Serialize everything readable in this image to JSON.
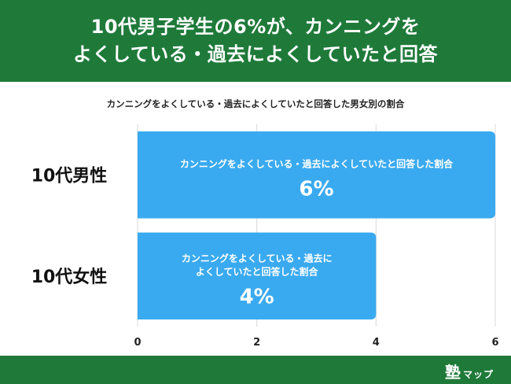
{
  "header": {
    "title_line1": "10代男子学生の6%が、カンニングを",
    "title_line2": "よくしている・過去によくしていたと回答"
  },
  "subtitle": "カンニングをよくしている・過去によくしていたと回答した男女別の割合",
  "chart_data": {
    "type": "bar",
    "orientation": "horizontal",
    "categories": [
      "10代男性",
      "10代女性"
    ],
    "values": [
      6,
      4
    ],
    "unit": "%",
    "bar_labels": [
      [
        "カンニングをよくしている・過去によくしていたと回答した割合"
      ],
      [
        "カンニングをよくしている・過去に",
        "よくしていたと回答した割合"
      ]
    ],
    "value_labels": [
      "6%",
      "4%"
    ],
    "x_ticks": [
      0,
      2,
      4,
      6
    ],
    "xlim": [
      0,
      6
    ],
    "grid": true,
    "bar_color": "#3aaaf0"
  },
  "footer": {
    "logo_mark": "塾",
    "logo_text": "マップ"
  },
  "colors": {
    "brand_green": "#1f7a3a",
    "bar_blue": "#3aaaf0",
    "grid": "#d9d9d9"
  }
}
